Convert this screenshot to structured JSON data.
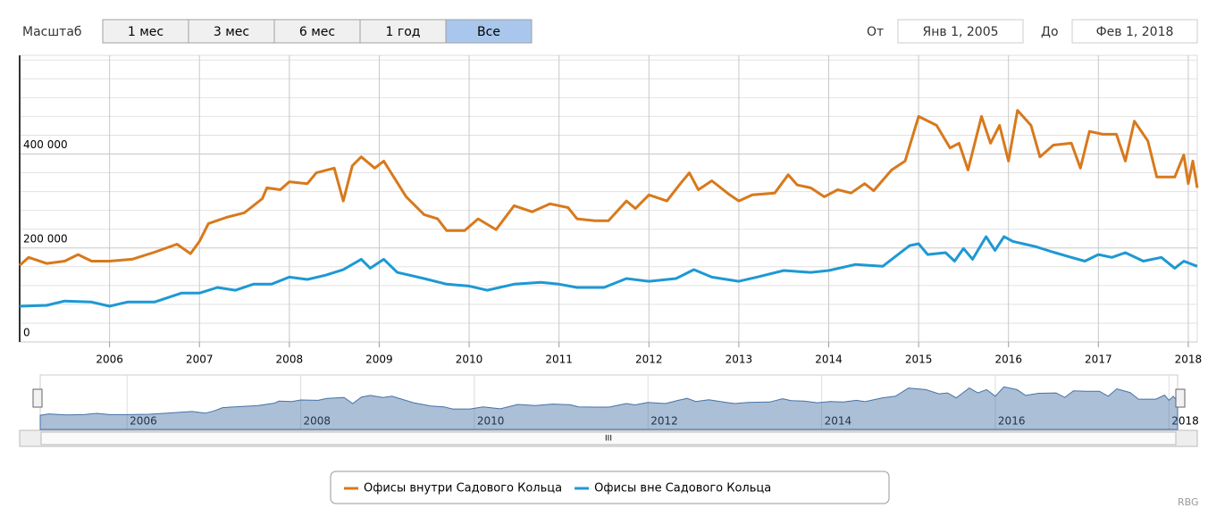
{
  "chart_data": {
    "type": "line",
    "xlim": [
      2005,
      2018.1
    ],
    "xticks": [
      2006,
      2007,
      2008,
      2009,
      2010,
      2011,
      2012,
      2013,
      2014,
      2015,
      2016,
      2017,
      2018
    ],
    "ylim": [
      0,
      610000
    ],
    "yticks": [
      0,
      {
        "value": 200000,
        "label": "200 000"
      },
      {
        "value": 400000,
        "label": "400 000"
      }
    ],
    "yminorticks": [
      40000,
      80000,
      120000,
      160000,
      240000,
      280000,
      320000,
      360000,
      440000,
      480000,
      520000,
      560000,
      600000
    ],
    "grid": true,
    "legend": "bottom",
    "series": [
      {
        "name": "Офисы внутри Садового Кольца",
        "color": "#d8791c",
        "x": [
          2005.0,
          2005.1,
          2005.3,
          2005.5,
          2005.65,
          2005.8,
          2006.0,
          2006.25,
          2006.5,
          2006.75,
          2006.9,
          2007.0,
          2007.1,
          2007.3,
          2007.5,
          2007.7,
          2007.75,
          2007.9,
          2008.0,
          2008.2,
          2008.3,
          2008.5,
          2008.6,
          2008.7,
          2008.8,
          2008.95,
          2009.05,
          2009.3,
          2009.5,
          2009.65,
          2009.75,
          2009.95,
          2010.1,
          2010.3,
          2010.5,
          2010.7,
          2010.9,
          2011.1,
          2011.2,
          2011.4,
          2011.55,
          2011.75,
          2011.85,
          2012.0,
          2012.2,
          2012.35,
          2012.45,
          2012.55,
          2012.7,
          2012.9,
          2013.0,
          2013.15,
          2013.4,
          2013.55,
          2013.65,
          2013.8,
          2013.95,
          2014.1,
          2014.25,
          2014.4,
          2014.5,
          2014.7,
          2014.85,
          2015.0,
          2015.2,
          2015.35,
          2015.45,
          2015.55,
          2015.7,
          2015.8,
          2015.9,
          2016.0,
          2016.1,
          2016.25,
          2016.35,
          2016.5,
          2016.7,
          2016.8,
          2016.9,
          2017.05,
          2017.2,
          2017.3,
          2017.4,
          2017.55,
          2017.65,
          2017.85,
          2017.95,
          2018.0,
          2018.05,
          2018.1
        ],
        "values": [
          163000,
          180000,
          167000,
          172000,
          186000,
          172000,
          172000,
          176000,
          191000,
          208000,
          188000,
          214000,
          252000,
          265000,
          275000,
          305000,
          328000,
          324000,
          341000,
          337000,
          360000,
          370000,
          300000,
          375000,
          394000,
          370000,
          385000,
          309000,
          271000,
          262000,
          237000,
          237000,
          262000,
          239000,
          290000,
          277000,
          294000,
          286000,
          262000,
          258000,
          258000,
          300000,
          284000,
          313000,
          300000,
          337000,
          360000,
          324000,
          343000,
          313000,
          300000,
          313000,
          317000,
          356000,
          334000,
          328000,
          309000,
          324000,
          317000,
          337000,
          322000,
          366000,
          385000,
          480000,
          461000,
          413000,
          423000,
          366000,
          480000,
          423000,
          461000,
          385000,
          493000,
          461000,
          394000,
          419000,
          423000,
          370000,
          448000,
          442000,
          442000,
          385000,
          470000,
          428000,
          351000,
          351000,
          398000,
          337000,
          385000,
          328000
        ]
      },
      {
        "name": "Офисы вне Садового Кольца",
        "color": "#1e98d4",
        "x": [
          2005.0,
          2005.3,
          2005.5,
          2005.8,
          2006.0,
          2006.2,
          2006.5,
          2006.8,
          2007.0,
          2007.2,
          2007.4,
          2007.6,
          2007.8,
          2008.0,
          2008.2,
          2008.4,
          2008.6,
          2008.8,
          2008.9,
          2009.05,
          2009.2,
          2009.5,
          2009.75,
          2010.0,
          2010.2,
          2010.5,
          2010.8,
          2011.0,
          2011.2,
          2011.5,
          2011.75,
          2012.0,
          2012.3,
          2012.5,
          2012.7,
          2013.0,
          2013.2,
          2013.5,
          2013.8,
          2014.0,
          2014.3,
          2014.6,
          2014.9,
          2015.0,
          2015.1,
          2015.3,
          2015.4,
          2015.5,
          2015.6,
          2015.75,
          2015.85,
          2015.95,
          2016.05,
          2016.3,
          2016.5,
          2016.7,
          2016.85,
          2017.0,
          2017.15,
          2017.3,
          2017.5,
          2017.7,
          2017.85,
          2017.95,
          2018.1
        ],
        "values": [
          76000,
          78000,
          87000,
          85000,
          76000,
          85000,
          85000,
          104000,
          104000,
          116000,
          110000,
          123000,
          123000,
          138000,
          133000,
          142000,
          154000,
          176000,
          157000,
          176000,
          148000,
          135000,
          123000,
          119000,
          110000,
          123000,
          127000,
          123000,
          116000,
          116000,
          135000,
          129000,
          135000,
          154000,
          138000,
          129000,
          138000,
          152000,
          148000,
          152000,
          165000,
          161000,
          205000,
          209000,
          186000,
          190000,
          172000,
          199000,
          176000,
          224000,
          195000,
          224000,
          214000,
          203000,
          191000,
          180000,
          172000,
          186000,
          180000,
          190000,
          172000,
          180000,
          157000,
          172000,
          161000
        ]
      }
    ]
  },
  "range_selector": {
    "label": "Масштаб",
    "buttons": [
      "1 мес",
      "3 мес",
      "6 мес",
      "1 год",
      "Все"
    ],
    "selected": 4,
    "from_label": "От",
    "from": "Янв 1, 2005",
    "to_label": "До",
    "to": "Фев 1, 2018"
  },
  "credits": "RBG"
}
